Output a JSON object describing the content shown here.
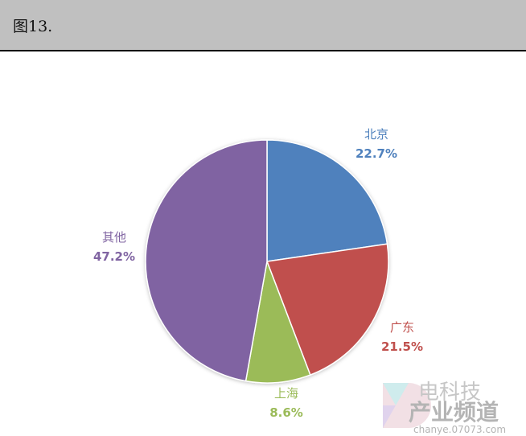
{
  "header": {
    "caption": "图13."
  },
  "chart_data": {
    "type": "pie",
    "start": "top",
    "direction": "clockwise",
    "slices": [
      {
        "label": "北京",
        "value": 22.7,
        "value_label": "22.7%",
        "color": "#4F81BD"
      },
      {
        "label": "广东",
        "value": 21.5,
        "value_label": "21.5%",
        "color": "#C0504D"
      },
      {
        "label": "上海",
        "value": 8.6,
        "value_label": "8.6%",
        "color": "#9BBB59"
      },
      {
        "label": "其他",
        "value": 47.2,
        "value_label": "47.2%",
        "color": "#8064A2"
      }
    ]
  },
  "watermark": {
    "text": "电科技 产业频道 chanye.07073.com"
  }
}
